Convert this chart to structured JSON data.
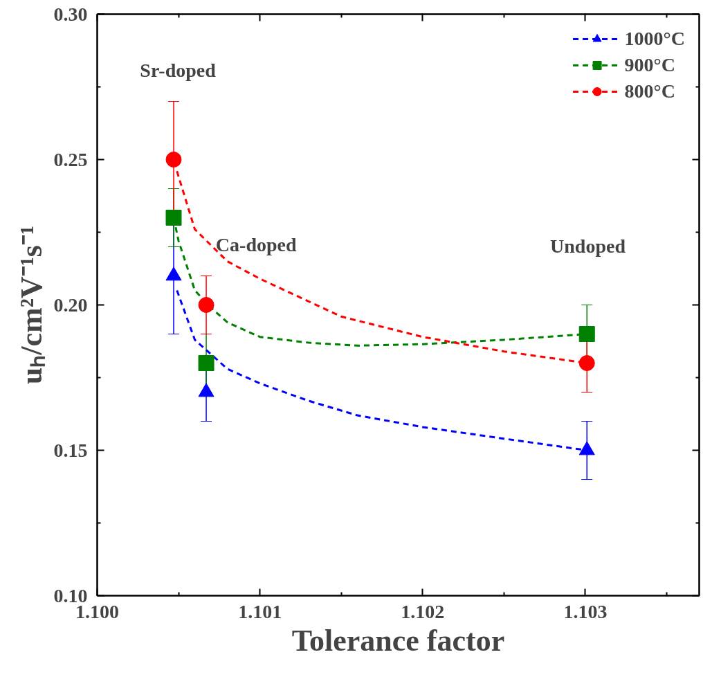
{
  "chart_data": {
    "type": "scatter",
    "xlabel": "Tolerance factor",
    "ylabel": "uₕ/cm²V⁻¹s⁻¹",
    "xlim": [
      1.1,
      1.1037
    ],
    "xticks": [
      {
        "value": 1.1,
        "label": "1.100"
      },
      {
        "value": 1.101,
        "label": "1.101"
      },
      {
        "value": 1.102,
        "label": "1.102"
      },
      {
        "value": 1.103,
        "label": "1.103"
      }
    ],
    "ylim": [
      0.1,
      0.3
    ],
    "yticks": [
      {
        "value": 0.1,
        "label": "0.10"
      },
      {
        "value": 0.15,
        "label": "0.15"
      },
      {
        "value": 0.2,
        "label": "0.20"
      },
      {
        "value": 0.25,
        "label": "0.25"
      },
      {
        "value": 0.3,
        "label": "0.30"
      }
    ],
    "grid": false,
    "legend": "top right",
    "series": [
      {
        "name": "1000°C",
        "color": "#0000ff",
        "marker": "triangle",
        "x": [
          1.10047,
          1.10067,
          1.10301
        ],
        "values": [
          0.21,
          0.17,
          0.15
        ],
        "errors": [
          0.02,
          0.01,
          0.01
        ]
      },
      {
        "type": "line",
        "color": "#0000ff",
        "line_style": "dashed",
        "x": [
          1.10049,
          1.1006,
          1.1007,
          1.1008,
          1.101,
          1.1013,
          1.1016,
          1.102,
          1.1025,
          1.10301
        ],
        "values": [
          0.205,
          0.188,
          0.183,
          0.178,
          0.173,
          0.167,
          0.162,
          0.158,
          0.154,
          0.15
        ]
      },
      {
        "name": "900°C",
        "color": "#008000",
        "marker": "square",
        "x": [
          1.10047,
          1.10067,
          1.10301
        ],
        "values": [
          0.23,
          0.18,
          0.19
        ],
        "errors": [
          0.01,
          0.01,
          0.01
        ]
      },
      {
        "type": "line",
        "color": "#008000",
        "line_style": "dashed",
        "x": [
          1.10047,
          1.1005,
          1.1006,
          1.1007,
          1.1008,
          1.101,
          1.1013,
          1.1016,
          1.102,
          1.1025,
          1.10301
        ],
        "values": [
          0.23,
          0.222,
          0.205,
          0.199,
          0.194,
          0.189,
          0.187,
          0.186,
          0.1865,
          0.188,
          0.19
        ]
      },
      {
        "name": "800°C",
        "color": "#ff0000",
        "marker": "circle",
        "x": [
          1.10047,
          1.10067,
          1.10301
        ],
        "values": [
          0.25,
          0.2,
          0.18
        ],
        "errors": [
          0.02,
          0.01,
          0.01
        ]
      },
      {
        "type": "line",
        "color": "#ff0000",
        "line_style": "dashed",
        "x": [
          1.10049,
          1.1006,
          1.1008,
          1.101,
          1.1015,
          1.102,
          1.1025,
          1.10301
        ],
        "values": [
          0.246,
          0.226,
          0.215,
          0.209,
          0.196,
          0.189,
          0.184,
          0.18
        ]
      }
    ],
    "annotations": [
      "Sr-doped",
      "Ca-doped",
      "Undoped"
    ]
  }
}
